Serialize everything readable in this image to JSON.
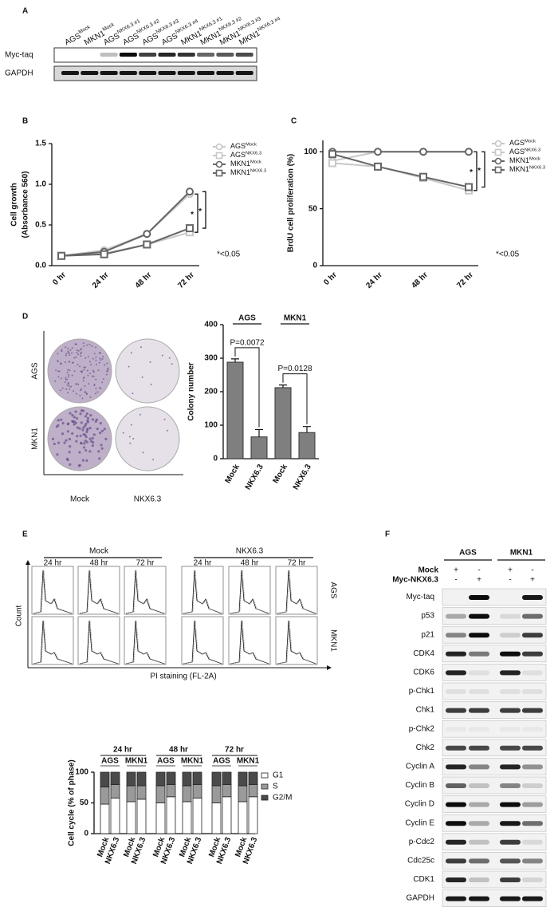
{
  "panel_labels": [
    "A",
    "B",
    "C",
    "D",
    "E",
    "F"
  ],
  "blot_a": {
    "lanes": [
      {
        "base": "AGS",
        "sup": "Mock"
      },
      {
        "base": "MKN1",
        "sup": "Mock"
      },
      {
        "base": "AGS",
        "sup": "NKX6.3 #1"
      },
      {
        "base": "AGS",
        "sup": "NKX6.3 #2"
      },
      {
        "base": "AGS",
        "sup": "NKX6.3 #3"
      },
      {
        "base": "AGS",
        "sup": "NKX6.3 #4"
      },
      {
        "base": "MKN1",
        "sup": "NKX6.3 #1"
      },
      {
        "base": "MKN1",
        "sup": "NKX6.3 #2"
      },
      {
        "base": "MKN1",
        "sup": "NKX6.3 #3"
      },
      {
        "base": "MKN1",
        "sup": "NKX6.3 #4"
      }
    ],
    "rows": [
      "Myc-taq",
      "GAPDH"
    ]
  },
  "chart_data": [
    {
      "type": "line",
      "ylabel": [
        "Cell growth",
        "(Absorbance 560)"
      ],
      "categories": [
        "0 hr",
        "24 hr",
        "48 hr",
        "72 hr"
      ],
      "ylim": [
        0,
        1.5
      ],
      "yticks": [
        {
          "value": 0,
          "label": "0.0"
        },
        {
          "value": 0.5,
          "label": "0.5"
        },
        {
          "value": 1,
          "label": "1.0"
        },
        {
          "value": 1.5,
          "label": "1.5"
        }
      ],
      "series": [
        {
          "name": "AGS",
          "name_sup": "Mock",
          "color": "#c8c8c8",
          "marker": "circle",
          "values": [
            0.12,
            0.19,
            0.39,
            0.88
          ]
        },
        {
          "name": "AGS",
          "name_sup": "NKX6.3",
          "color": "#c8c8c8",
          "marker": "square",
          "values": [
            0.12,
            0.15,
            0.26,
            0.41
          ]
        },
        {
          "name": "MKN1",
          "name_sup": "Mock",
          "color": "#666666",
          "marker": "circle",
          "values": [
            0.12,
            0.17,
            0.39,
            0.91
          ]
        },
        {
          "name": "MKN1",
          "name_sup": "NKX6.3",
          "color": "#666666",
          "marker": "square",
          "values": [
            0.12,
            0.14,
            0.26,
            0.46
          ]
        }
      ],
      "stars": [
        "*",
        "*"
      ],
      "note": "*<0.05"
    },
    {
      "type": "line",
      "ylabel": [
        "BrdU cell proliferation (%)"
      ],
      "categories": [
        "0 hr",
        "24 hr",
        "48 hr",
        "72 hr"
      ],
      "ylim": [
        0,
        110
      ],
      "yticks": [
        0,
        50,
        100
      ],
      "series": [
        {
          "name": "AGS",
          "name_sup": "Mock",
          "color": "#c8c8c8",
          "marker": "circle",
          "values": [
            92,
            100,
            100,
            100
          ]
        },
        {
          "name": "AGS",
          "name_sup": "NKX6.3",
          "color": "#c8c8c8",
          "marker": "square",
          "values": [
            90,
            87,
            77,
            66
          ]
        },
        {
          "name": "MKN1",
          "name_sup": "Mock",
          "color": "#666666",
          "marker": "circle",
          "values": [
            100,
            100,
            100,
            100
          ]
        },
        {
          "name": "MKN1",
          "name_sup": "NKX6.3",
          "color": "#666666",
          "marker": "square",
          "values": [
            98,
            87,
            78,
            69
          ]
        }
      ],
      "stars": [
        "*",
        "*"
      ],
      "note": "*<0.05"
    },
    {
      "type": "bar",
      "ylabel": [
        "Colony number"
      ],
      "categories": [
        "Mock",
        "NKX6.3",
        "Mock",
        "NKX6.3"
      ],
      "values": [
        288,
        65,
        212,
        78
      ],
      "errors": [
        10,
        22,
        8,
        18
      ],
      "color": "#7f7f7f",
      "ylim": [
        0,
        400
      ],
      "yticks": [
        0,
        100,
        200,
        300,
        400
      ],
      "groups": [
        {
          "label": "AGS",
          "pvalue": "P=0.0072"
        },
        {
          "label": "MKN1",
          "pvalue": "P=0.0128"
        }
      ]
    },
    {
      "type": "stacked_bar",
      "ylabel": [
        "Cell cycle (% of phase)"
      ],
      "categories": [
        "Mock",
        "NKX6.3",
        "Mock",
        "NKX6.3",
        "Mock",
        "NKX6.3",
        "Mock",
        "NKX6.3",
        "Mock",
        "NKX6.3",
        "Mock",
        "NKX6.3"
      ],
      "groups": [
        {
          "label": "24 hr",
          "cells": [
            "AGS",
            "MKN1"
          ]
        },
        {
          "label": "48 hr",
          "cells": [
            "AGS",
            "MKN1"
          ]
        },
        {
          "label": "72 hr",
          "cells": [
            "AGS",
            "MKN1"
          ]
        }
      ],
      "ylim": [
        0,
        100
      ],
      "yticks": [
        0,
        50,
        100
      ],
      "series": [
        {
          "name": "G1",
          "color": "#ffffff",
          "values": [
            48,
            58,
            52,
            56,
            50,
            60,
            52,
            58,
            50,
            60,
            52,
            60
          ]
        },
        {
          "name": "S",
          "color": "#9a9a9a",
          "values": [
            28,
            22,
            26,
            22,
            28,
            20,
            26,
            22,
            28,
            20,
            26,
            20
          ]
        },
        {
          "name": "G2/M",
          "color": "#4a4a4a",
          "values": [
            24,
            20,
            22,
            22,
            22,
            20,
            22,
            20,
            22,
            20,
            22,
            20
          ]
        }
      ]
    }
  ],
  "colony_images": {
    "rows": [
      "AGS",
      "MKN1"
    ],
    "cols": [
      "Mock",
      "NKX6.3"
    ]
  },
  "flow": {
    "conditions": [
      "Mock",
      "NKX6.3"
    ],
    "times": [
      "24 hr",
      "48 hr",
      "72 hr"
    ],
    "cells": [
      "AGS",
      "MKN1"
    ],
    "ylabel": "Count",
    "xlabel": "PI staining (FL-2A)"
  },
  "blot_f": {
    "cells": [
      "AGS",
      "MKN1"
    ],
    "treatments": [
      {
        "label": "Mock",
        "signs": [
          "+",
          "-",
          "+",
          "-"
        ]
      },
      {
        "label": "Myc-NKX6.3",
        "signs": [
          "-",
          "+",
          "-",
          "+"
        ]
      }
    ],
    "proteins": [
      "Myc-taq",
      "p53",
      "p21",
      "CDK4",
      "CDK6",
      "p-Chk1",
      "Chk1",
      "p-Chk2",
      "Chk2",
      "Cyclin A",
      "Cyclin B",
      "Cyclin D",
      "Cyclin E",
      "p-Cdc2",
      "Cdc25c",
      "CDK1",
      "GAPDH"
    ]
  }
}
